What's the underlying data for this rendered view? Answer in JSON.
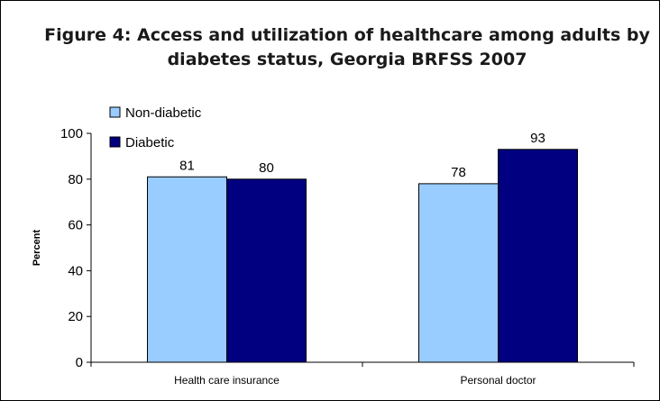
{
  "chart_data": {
    "type": "bar",
    "title": "Figure 4: Access and utilization of healthcare among adults by diabetes status, Georgia BRFSS 2007",
    "xlabel": "",
    "ylabel": "Percent",
    "categories": [
      "Health care insurance",
      "Personal doctor"
    ],
    "series": [
      {
        "name": "Non-diabetic",
        "values": [
          81,
          78
        ],
        "color": "#99ccff"
      },
      {
        "name": "Diabetic",
        "values": [
          80,
          93
        ],
        "color": "#000080"
      }
    ],
    "ylim": [
      0,
      100
    ],
    "yticks": [
      0,
      20,
      40,
      60,
      80,
      100
    ],
    "grid": false,
    "legend": "top-left",
    "data_labels": true
  }
}
